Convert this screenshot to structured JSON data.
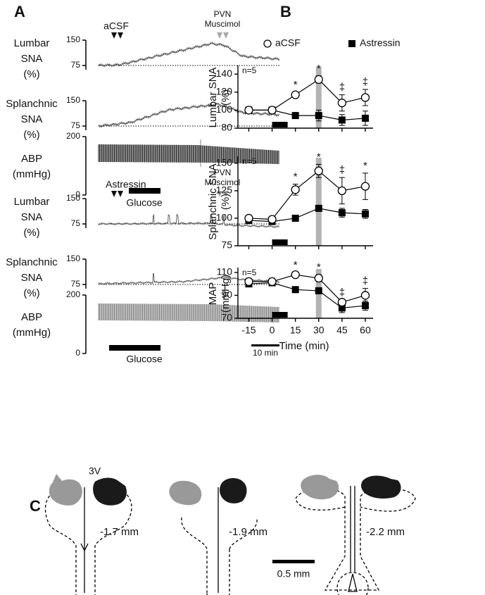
{
  "panel_a": {
    "label": "A",
    "scale": "10 min",
    "groups": [
      {
        "marker": "aCSF",
        "trigger": [
          "PVN",
          "Muscimol"
        ],
        "glucose": "Glucose",
        "traces": [
          {
            "label": [
              "Lumbar",
              "SNA",
              "(%)"
            ],
            "ticks": [
              150,
              75
            ]
          },
          {
            "label": [
              "Splanchnic",
              "SNA",
              "(%)"
            ],
            "ticks": [
              150,
              75
            ]
          },
          {
            "label": [
              "ABP",
              "(mmHg)"
            ],
            "ticks": [
              200,
              0
            ]
          }
        ]
      },
      {
        "marker": "Astressin",
        "trigger": [
          "PVN",
          "Muscimol"
        ],
        "glucose": "Glucose",
        "traces": [
          {
            "label": [
              "Lumbar",
              "SNA",
              "(%)"
            ],
            "ticks": [
              150,
              75
            ]
          },
          {
            "label": [
              "Splanchnic",
              "SNA",
              "(%)"
            ],
            "ticks": [
              150,
              75
            ]
          },
          {
            "label": [
              "ABP",
              "(mmHg)"
            ],
            "ticks": [
              200,
              0
            ]
          }
        ]
      }
    ]
  },
  "panel_b_label": "B",
  "chart_data": [
    {
      "type": "line",
      "ylabel": [
        "Lumbar SNA",
        "(%)"
      ],
      "note": "n=5",
      "x": [
        -15,
        0,
        15,
        30,
        45,
        60
      ],
      "xlim": [
        -22,
        65
      ],
      "xticks": [
        -15,
        0,
        15,
        30,
        45,
        60
      ],
      "ylim": [
        80,
        148
      ],
      "yticks": [
        80,
        100,
        120,
        140
      ],
      "highlight_x": 30,
      "bar_x": [
        0,
        10
      ],
      "annotations": [
        null,
        null,
        "*",
        "*",
        "‡",
        "‡"
      ],
      "series": [
        {
          "name": "aCSF",
          "marker": "circle",
          "color": "#000000",
          "values": [
            100,
            100,
            117,
            134,
            108,
            114
          ],
          "errors": [
            0,
            0,
            3,
            4,
            9,
            9
          ]
        },
        {
          "name": "Astressin",
          "marker": "square",
          "color": "#000000",
          "values": [
            100,
            100,
            94,
            94,
            89,
            91
          ],
          "errors": [
            2,
            1,
            3,
            6,
            6,
            8
          ]
        }
      ]
    },
    {
      "type": "line",
      "ylabel": [
        "Splanchnic SNA",
        "(%)"
      ],
      "note": "n=5",
      "x": [
        -15,
        0,
        15,
        30,
        45,
        60
      ],
      "xlim": [
        -22,
        65
      ],
      "xticks": [
        -15,
        0,
        15,
        30,
        45,
        60
      ],
      "ylim": [
        75,
        155
      ],
      "yticks": [
        75,
        100,
        125,
        150
      ],
      "highlight_x": 30,
      "bar_x": [
        0,
        10
      ],
      "annotations": [
        null,
        null,
        "*",
        "*",
        "‡",
        "*"
      ],
      "series": [
        {
          "name": "aCSF",
          "marker": "circle",
          "color": "#000000",
          "values": [
            100,
            99,
            126,
            143,
            125,
            129
          ],
          "errors": [
            1,
            1,
            5,
            6,
            12,
            12
          ]
        },
        {
          "name": "Astressin",
          "marker": "square",
          "color": "#000000",
          "values": [
            98,
            97,
            100,
            109,
            105,
            104
          ],
          "errors": [
            2,
            2,
            2,
            2,
            4,
            4
          ]
        }
      ]
    },
    {
      "type": "line",
      "ylabel": [
        "MAP",
        "(mmHg)"
      ],
      "note": "n=5",
      "xlabel": "Time (min)",
      "x": [
        -15,
        0,
        15,
        30,
        45,
        60
      ],
      "xlim": [
        -22,
        65
      ],
      "xticks": [
        -15,
        0,
        15,
        30,
        45,
        60
      ],
      "ylim": [
        70,
        113
      ],
      "yticks": [
        70,
        90,
        110
      ],
      "highlight_x": 30,
      "bar_x": [
        0,
        10
      ],
      "annotations": [
        null,
        null,
        "*",
        "*",
        "‡",
        "‡"
      ],
      "series": [
        {
          "name": "aCSF",
          "marker": "circle",
          "color": "#000000",
          "values": [
            102,
            102,
            108,
            105,
            84,
            90
          ],
          "errors": [
            3,
            3,
            2,
            3,
            2,
            6
          ]
        },
        {
          "name": "Astressin",
          "marker": "square",
          "color": "#000000",
          "values": [
            100,
            101,
            95,
            94,
            79,
            81
          ],
          "errors": [
            2,
            2,
            2,
            2,
            4,
            4
          ]
        }
      ]
    }
  ],
  "panel_c": {
    "label": "C",
    "ventricle": "3V",
    "levels": [
      "-1.7 mm",
      "-1.9 mm",
      "-2.2 mm"
    ],
    "scale": "0.5 mm"
  }
}
